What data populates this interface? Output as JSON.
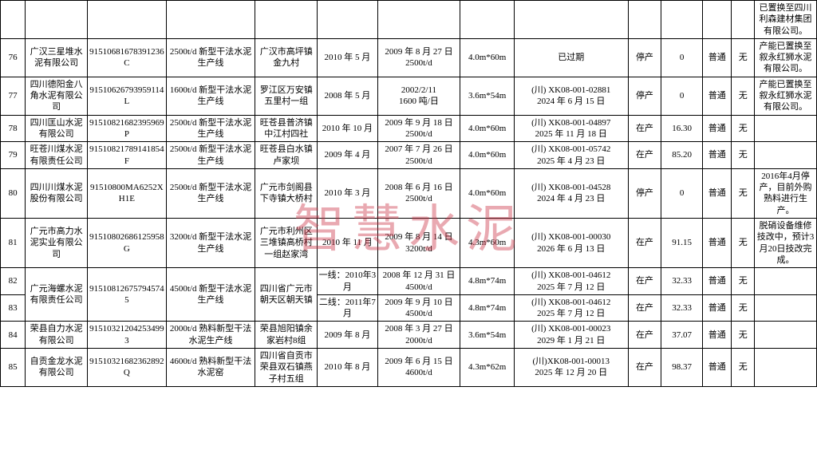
{
  "watermark": "智慧水泥",
  "cols": [
    24,
    60,
    76,
    86,
    60,
    58,
    80,
    52,
    110,
    32,
    40,
    28,
    22,
    60
  ],
  "rows": [
    {
      "n": "",
      "c": [
        "",
        "",
        "",
        "",
        "",
        "",
        "",
        "",
        "",
        "",
        "",
        "",
        "已置换至四川利森建材集团有限公司。"
      ]
    },
    {
      "n": "76",
      "c": [
        "广汉三星堆水泥有限公司",
        "91510681678391236C",
        "2500t/d 新型干法水泥生产线",
        "广汉市高坪镇金九村",
        "2010 年 5 月",
        "2009 年 8 月 27 日\n2500t/d",
        "4.0m*60m",
        "已过期",
        "停产",
        "0",
        "普通",
        "无",
        "产能已置换至叙永红狮水泥有限公司。"
      ]
    },
    {
      "n": "77",
      "c": [
        "四川德阳金八角水泥有限公司",
        "91510626793959114L",
        "1600t/d 新型干法水泥生产线",
        "罗江区万安镇五里村一组",
        "2008 年 5 月",
        "2002/2/11\n1600 吨/日",
        "3.6m*54m",
        "(川) XK08-001-02881\n2024 年 6 月 15 日",
        "停产",
        "0",
        "普通",
        "无",
        "产能已置换至叙永红狮水泥有限公司。"
      ]
    },
    {
      "n": "78",
      "c": [
        "四川匡山水泥有限公司",
        "91510821682395969P",
        "2500t/d 新型干法水泥生产线",
        "旺苍县普济镇中江村四社",
        "2010 年 10 月",
        "2009 年 9 月 18 日\n2500t/d",
        "4.0m*60m",
        "(川) XK08-001-04897\n2025 年 11 月 18 日",
        "在产",
        "16.30",
        "普通",
        "无",
        ""
      ]
    },
    {
      "n": "79",
      "c": [
        "旺苍川煤水泥有限责任公司",
        "91510821789141854F",
        "2500t/d 新型干法水泥生产线",
        "旺苍县白水镇卢家坝",
        "2009 年 4 月",
        "2007 年 7 月 26 日\n2500t/d",
        "4.0m*60m",
        "(川) XK08-001-05742\n2025 年 4 月 23 日",
        "在产",
        "85.20",
        "普通",
        "无",
        ""
      ]
    },
    {
      "n": "80",
      "c": [
        "四川川煤水泥股份有限公司",
        "91510800MA6252XH1E",
        "2500t/d 新型干法水泥生产线",
        "广元市剑阁县下寺镇大桥村",
        "2010 年 3 月",
        "2008 年 6 月 16 日\n2500t/d",
        "4.0m*60m",
        "(川) XK08-001-04528\n2024 年 4 月 23 日",
        "停产",
        "0",
        "普通",
        "无",
        "2016年4月停产，目前外购熟料进行生产。"
      ]
    },
    {
      "n": "81",
      "c": [
        "广元市高力水泥实业有限公司",
        "91510802686125958G",
        "3200t/d 新型干法水泥生产线",
        "广元市利州区三堆镇高桥村一组赵家湾",
        "2010 年 11 月",
        "2009 年 8 月 14 日\n3200t/d",
        "4.3m*60m",
        "(川) XK08-001-00030\n2026 年 6 月 13 日",
        "在产",
        "91.15",
        "普通",
        "无",
        "脱硝设备维修技改中，预计3月20日技改完成。"
      ]
    },
    {
      "n": "82",
      "c": [
        "广元海螺水泥有限责任公司",
        "915108126757945745",
        "4500t/d 新型干法水泥生产线",
        "四川省广元市朝天区朝天镇",
        "一线：2010年3月",
        "2008 年 12 月 31 日\n4500t/d",
        "4.8m*74m",
        "(川) XK08-001-04612\n2025 年 7 月 12 日",
        "在产",
        "32.33",
        "普通",
        "无",
        ""
      ],
      "merge": [
        0,
        1,
        2,
        3
      ]
    },
    {
      "n": "83",
      "c": [
        "",
        "",
        "",
        "",
        "二线：2011年7月",
        "2009 年 9 月 10 日\n4500t/d",
        "4.8m*74m",
        "(川) XK08-001-04612\n2025 年 7 月 12 日",
        "在产",
        "32.33",
        "普通",
        "无",
        ""
      ]
    },
    {
      "n": "84",
      "c": [
        "荣县自力水泥有限公司",
        "915103212042534993",
        "2000t/d 熟料新型干法水泥生产线",
        "荣县旭阳镇余家岩村8组",
        "2009 年 8 月",
        "2008 年 3 月 27 日\n2000t/d",
        "3.6m*54m",
        "(川) XK08-001-00023\n2029 年 1 月 21 日",
        "在产",
        "37.07",
        "普通",
        "无",
        ""
      ]
    },
    {
      "n": "85",
      "c": [
        "自贡金龙水泥有限公司",
        "91510321682362892Q",
        "4600t/d 熟料新型干法水泥窑",
        "四川省自贡市荣县双石镇燕子村五组",
        "2010 年 8 月",
        "2009 年 6 月 15 日\n4600t/d",
        "4.3m*62m",
        "(川)XK08-001-00013\n2025 年 12 月 20 日",
        "在产",
        "98.37",
        "普通",
        "无",
        ""
      ]
    }
  ]
}
